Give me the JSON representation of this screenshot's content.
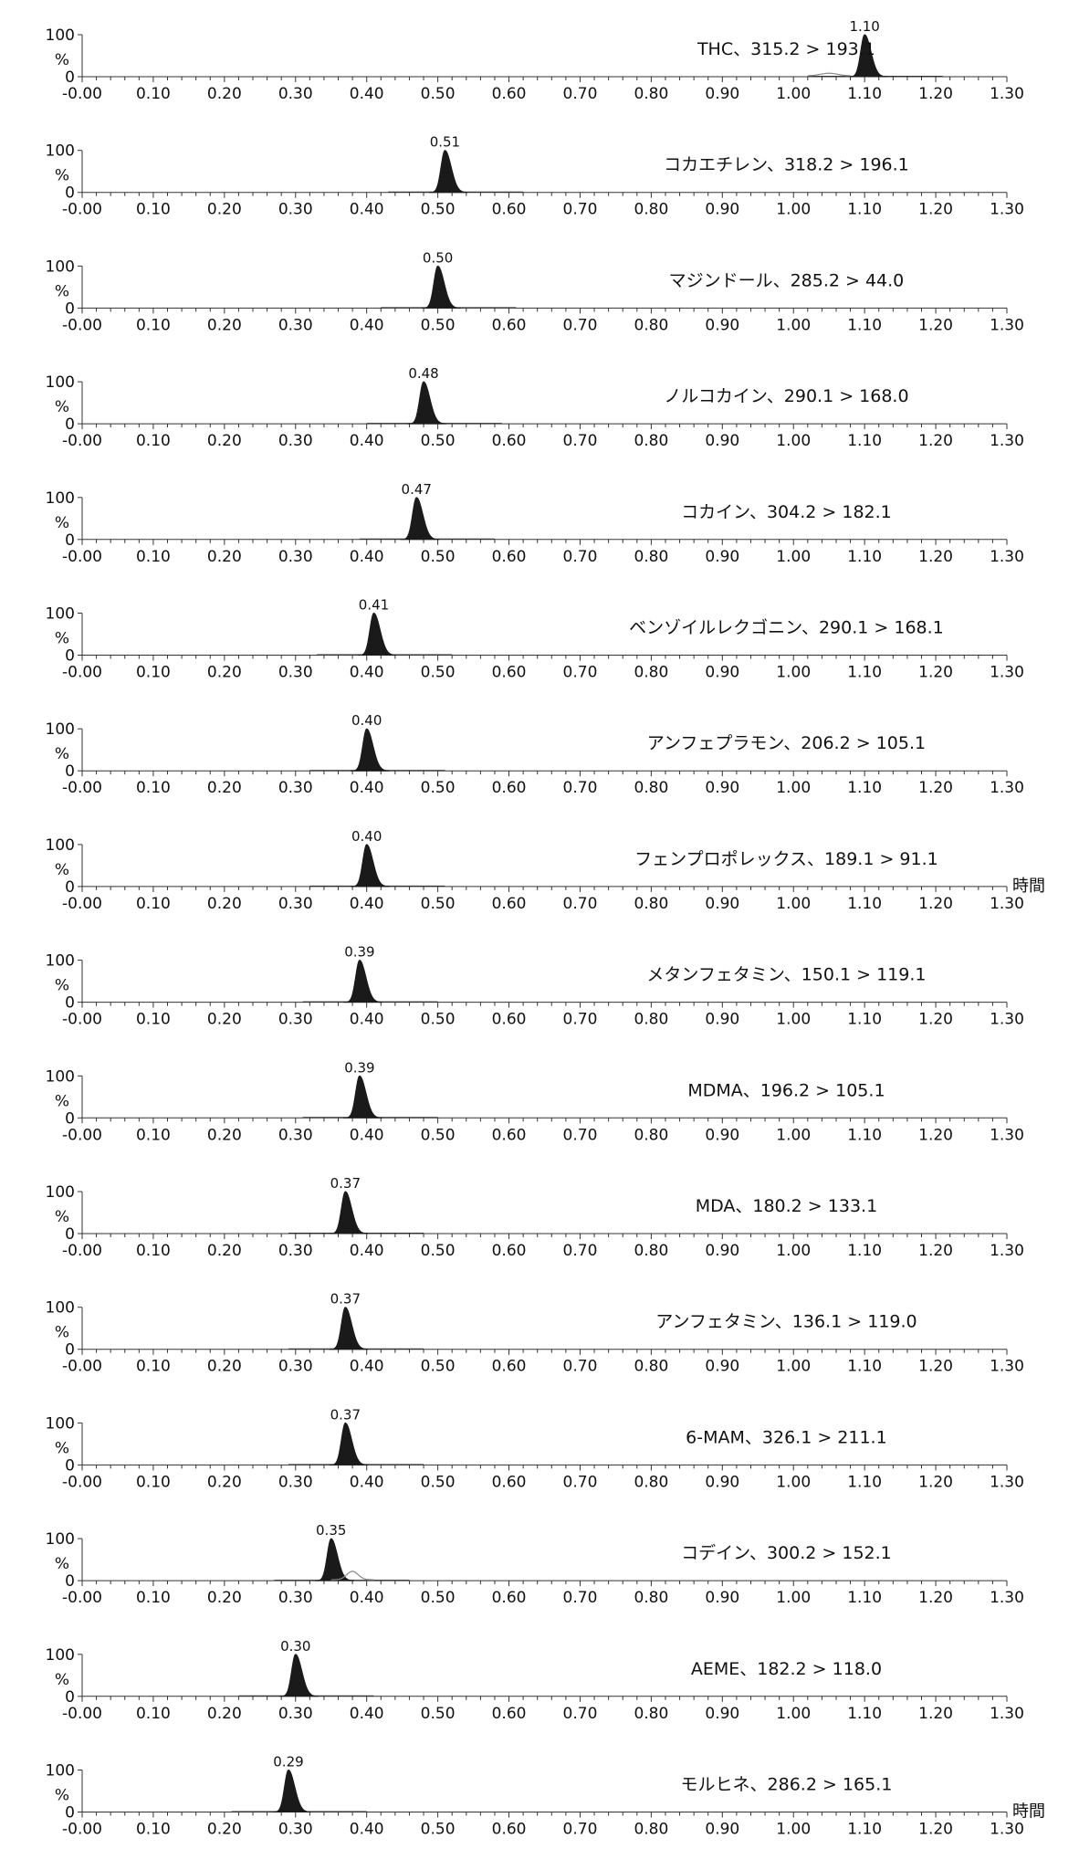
{
  "chart_data": {
    "type": "line",
    "x_unit_label": "時間",
    "xlim": [
      0.0,
      1.3
    ],
    "x_tick_labels": [
      "-0.00",
      "0.10",
      "0.20",
      "0.30",
      "0.40",
      "0.50",
      "0.60",
      "0.70",
      "0.80",
      "0.90",
      "1.00",
      "1.10",
      "1.20",
      "1.30"
    ],
    "y_axis": {
      "ticks": [
        "100",
        "0"
      ],
      "label": "%"
    },
    "colors": {
      "peak_fill": "#1a1a1a",
      "baseline": "#333333",
      "secondary_trace": "#888888"
    },
    "traces": [
      {
        "label": "THC、315.2 > 193.1",
        "peak_rt": 1.1,
        "peak_label": "1.10",
        "minor": [
          {
            "rt": 1.05,
            "height": 6,
            "width": 0.012
          }
        ]
      },
      {
        "label": "コカエチレン、318.2 > 196.1",
        "peak_rt": 0.51,
        "peak_label": "0.51",
        "minor": []
      },
      {
        "label": "マジンドール、285.2 > 44.0",
        "peak_rt": 0.5,
        "peak_label": "0.50",
        "minor": []
      },
      {
        "label": "ノルコカイン、290.1 > 168.0",
        "peak_rt": 0.48,
        "peak_label": "0.48",
        "minor": []
      },
      {
        "label": "コカイン、304.2 > 182.1",
        "peak_rt": 0.47,
        "peak_label": "0.47",
        "minor": []
      },
      {
        "label": "ベンゾイルレクゴニン、290.1 > 168.1",
        "peak_rt": 0.41,
        "peak_label": "0.41",
        "minor": []
      },
      {
        "label": "アンフェプラモン、206.2 > 105.1",
        "peak_rt": 0.4,
        "peak_label": "0.40",
        "minor": []
      },
      {
        "label": "フェンプロポレックス、189.1 > 91.1",
        "peak_rt": 0.4,
        "peak_label": "0.40",
        "minor": [],
        "show_unit": true
      },
      {
        "label": "メタンフェタミン、150.1 > 119.1",
        "peak_rt": 0.39,
        "peak_label": "0.39",
        "minor": []
      },
      {
        "label": "MDMA、196.2 > 105.1",
        "peak_rt": 0.39,
        "peak_label": "0.39",
        "minor": []
      },
      {
        "label": "MDA、180.2 > 133.1",
        "peak_rt": 0.37,
        "peak_label": "0.37",
        "minor": []
      },
      {
        "label": "アンフェタミン、136.1 > 119.0",
        "peak_rt": 0.37,
        "peak_label": "0.37",
        "minor": []
      },
      {
        "label": "6-MAM、326.1 > 211.1",
        "peak_rt": 0.37,
        "peak_label": "0.37",
        "minor": []
      },
      {
        "label": "コデイン、300.2 > 152.1",
        "peak_rt": 0.35,
        "peak_label": "0.35",
        "minor": [
          {
            "rt": 0.38,
            "height": 20,
            "width": 0.008
          }
        ]
      },
      {
        "label": "AEME、182.2 > 118.0",
        "peak_rt": 0.3,
        "peak_label": "0.30",
        "minor": []
      },
      {
        "label": "モルヒネ、286.2 > 165.1",
        "peak_rt": 0.29,
        "peak_label": "0.29",
        "minor": [],
        "show_unit": true
      }
    ]
  }
}
